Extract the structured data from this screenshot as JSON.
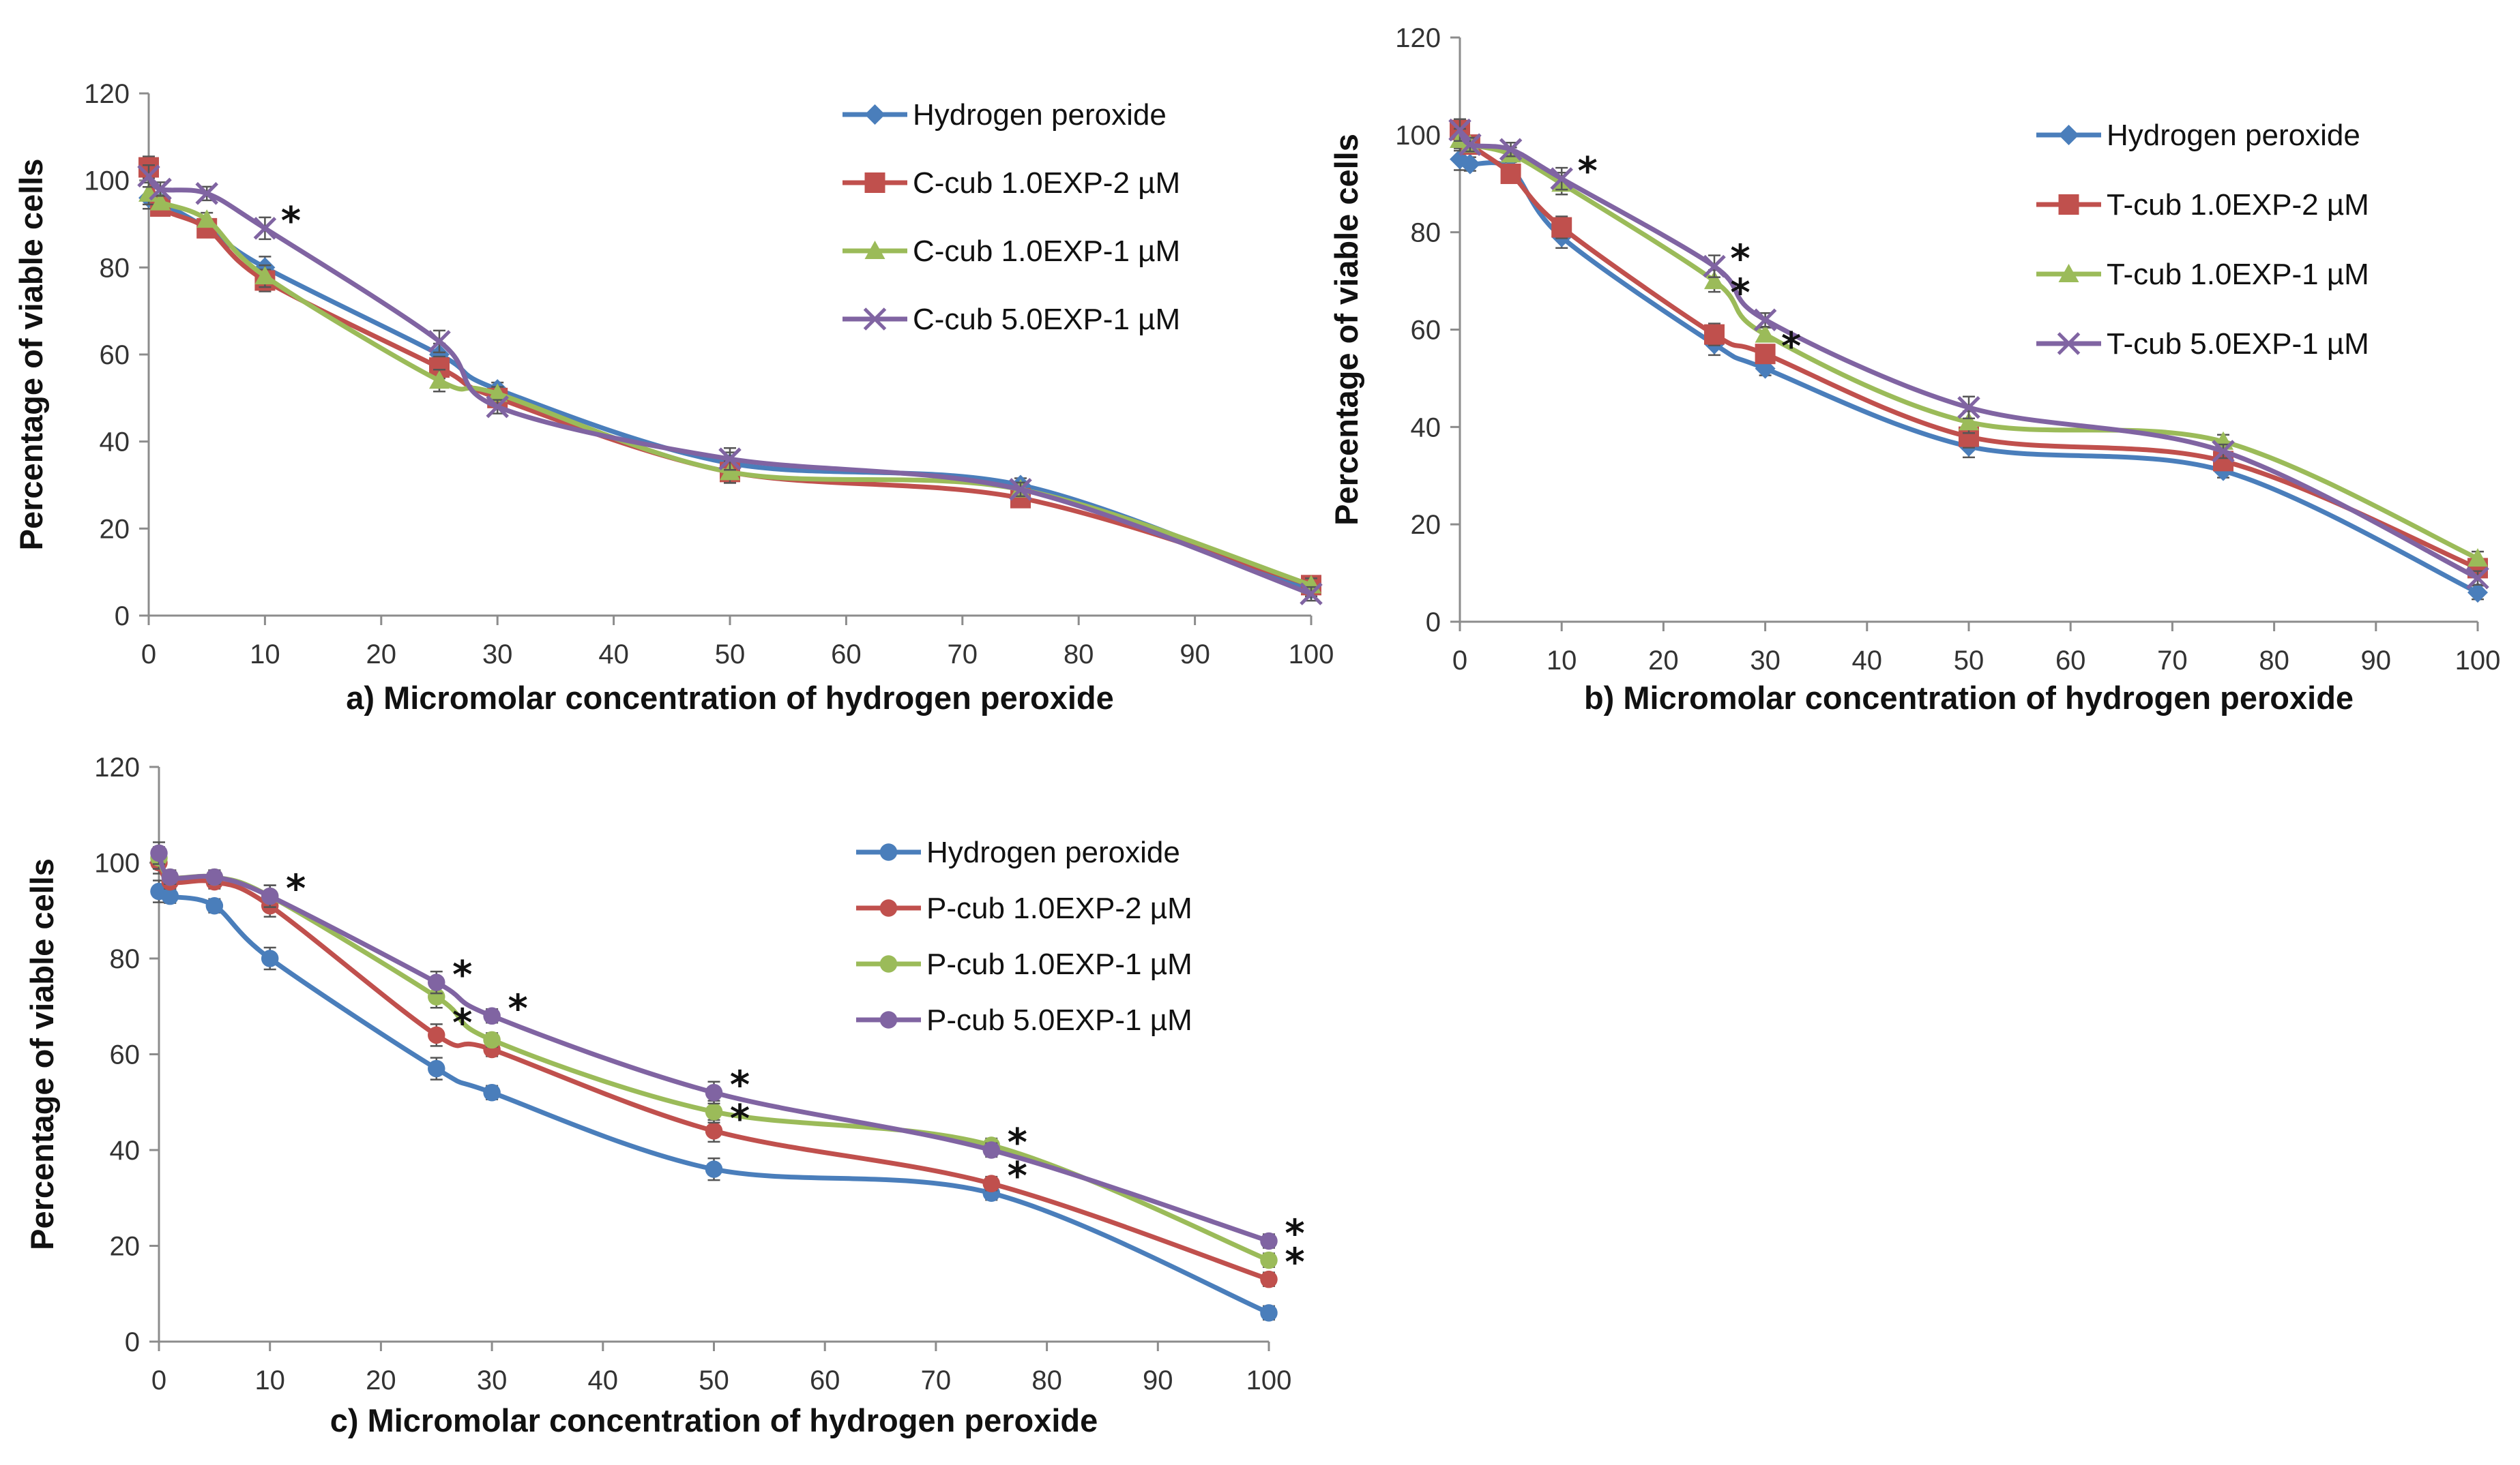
{
  "chart_data": [
    {
      "type": "line",
      "panel": "a",
      "xlabel": "a) Micromolar concentration of hydrogen peroxide",
      "ylabel": "Percentage of viable cells",
      "xlim": [
        0,
        100
      ],
      "ylim": [
        0,
        120
      ],
      "xticks": [
        0,
        10,
        20,
        30,
        40,
        50,
        60,
        70,
        80,
        90,
        100
      ],
      "yticks": [
        0,
        20,
        40,
        60,
        80,
        100,
        120
      ],
      "legend_position": "top-right",
      "x": [
        0,
        1,
        5,
        10,
        25,
        30,
        50,
        75,
        100
      ],
      "series": [
        {
          "name": "Hydrogen peroxide",
          "color": "#4a7ebb",
          "marker": "diamond",
          "values": [
            96,
            95,
            89,
            80,
            60,
            52,
            35,
            30,
            6
          ]
        },
        {
          "name": "C-cub 1.0EXP-2 µM",
          "color": "#c0504d",
          "marker": "square",
          "values": [
            103,
            94,
            89,
            77,
            57,
            50,
            33,
            27,
            7
          ]
        },
        {
          "name": "C-cub 1.0EXP-1 µM",
          "color": "#9bbb59",
          "marker": "triangle",
          "values": [
            97,
            95,
            91,
            78,
            54,
            51,
            33,
            29,
            7
          ]
        },
        {
          "name": "C-cub 5.0EXP-1 µM",
          "color": "#8064a2",
          "marker": "x",
          "values": [
            101,
            98,
            97,
            89,
            63,
            48,
            36,
            29,
            5
          ]
        }
      ],
      "annotations": [
        {
          "x": 10,
          "y": 89,
          "text": "*"
        }
      ]
    },
    {
      "type": "line",
      "panel": "b",
      "xlabel": "b) Micromolar concentration of hydrogen peroxide",
      "ylabel": "Percentage of viable cells",
      "xlim": [
        0,
        100
      ],
      "ylim": [
        0,
        120
      ],
      "xticks": [
        0,
        10,
        20,
        30,
        40,
        50,
        60,
        70,
        80,
        90,
        100
      ],
      "yticks": [
        0,
        20,
        40,
        60,
        80,
        100,
        120
      ],
      "legend_position": "top-right",
      "x": [
        0,
        1,
        5,
        10,
        25,
        30,
        50,
        75,
        100
      ],
      "series": [
        {
          "name": "Hydrogen peroxide",
          "color": "#4a7ebb",
          "marker": "diamond",
          "values": [
            95,
            94,
            93,
            79,
            57,
            52,
            36,
            31,
            6
          ]
        },
        {
          "name": "T-cub 1.0EXP-2 µM",
          "color": "#c0504d",
          "marker": "square",
          "values": [
            101,
            98,
            92,
            81,
            59,
            55,
            38,
            33,
            11
          ]
        },
        {
          "name": "T-cub 1.0EXP-1 µM",
          "color": "#9bbb59",
          "marker": "triangle",
          "values": [
            99,
            98,
            96,
            90,
            70,
            59,
            41,
            37,
            13
          ]
        },
        {
          "name": "T-cub 5.0EXP-1 µM",
          "color": "#8064a2",
          "marker": "x",
          "values": [
            101,
            98,
            97,
            91,
            73,
            62,
            44,
            35,
            9
          ]
        }
      ],
      "annotations": [
        {
          "x": 10,
          "y": 91,
          "text": "*"
        },
        {
          "x": 25,
          "y": 73,
          "text": "*"
        },
        {
          "x": 25,
          "y": 66,
          "text": "*"
        },
        {
          "x": 30,
          "y": 55,
          "text": "*"
        }
      ]
    },
    {
      "type": "line",
      "panel": "c",
      "xlabel": "c) Micromolar concentration of hydrogen peroxide",
      "ylabel": "Percentage of viable cells",
      "xlim": [
        0,
        100
      ],
      "ylim": [
        0,
        120
      ],
      "xticks": [
        0,
        10,
        20,
        30,
        40,
        50,
        60,
        70,
        80,
        90,
        100
      ],
      "yticks": [
        0,
        20,
        40,
        60,
        80,
        100,
        120
      ],
      "legend_position": "top-right",
      "x": [
        0,
        1,
        5,
        10,
        25,
        30,
        50,
        75,
        100
      ],
      "series": [
        {
          "name": "Hydrogen peroxide",
          "color": "#4a7ebb",
          "marker": "circle",
          "values": [
            94,
            93,
            91,
            80,
            57,
            52,
            36,
            31,
            6
          ]
        },
        {
          "name": "P-cub 1.0EXP-2 µM",
          "color": "#c0504d",
          "marker": "circle",
          "values": [
            100,
            96,
            96,
            91,
            64,
            61,
            44,
            33,
            13
          ]
        },
        {
          "name": "P-cub 1.0EXP-1 µM",
          "color": "#9bbb59",
          "marker": "circle",
          "values": [
            101,
            97,
            97,
            93,
            72,
            63,
            48,
            41,
            17
          ]
        },
        {
          "name": "P-cub 5.0EXP-1 µM",
          "color": "#8064a2",
          "marker": "circle",
          "values": [
            102,
            97,
            97,
            93,
            75,
            68,
            52,
            40,
            21
          ]
        }
      ],
      "annotations": [
        {
          "x": 10,
          "y": 93,
          "text": "*"
        },
        {
          "x": 25,
          "y": 75,
          "text": "*"
        },
        {
          "x": 25,
          "y": 65,
          "text": "*"
        },
        {
          "x": 30,
          "y": 68,
          "text": "*"
        },
        {
          "x": 50,
          "y": 52,
          "text": "*"
        },
        {
          "x": 50,
          "y": 45,
          "text": "*"
        },
        {
          "x": 75,
          "y": 40,
          "text": "*"
        },
        {
          "x": 75,
          "y": 33,
          "text": "*"
        },
        {
          "x": 100,
          "y": 21,
          "text": "*"
        },
        {
          "x": 100,
          "y": 15,
          "text": "*"
        }
      ]
    }
  ]
}
